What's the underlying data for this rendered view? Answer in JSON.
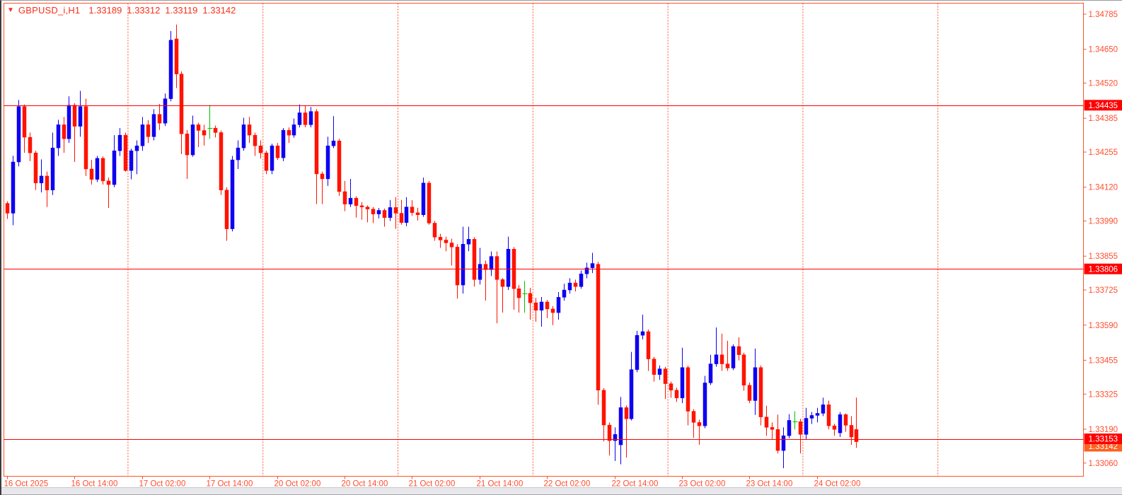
{
  "window": {
    "background": "#ffffff"
  },
  "title": {
    "indicator_arrow": "▼",
    "symbol_period": "GBPUSD_i,H1",
    "ohlc": [
      "1.33189",
      "1.33312",
      "1.33119",
      "1.33142"
    ]
  },
  "colors": {
    "axis_text": "#ff4d2e",
    "frame": "#ff5330",
    "separator": "#ff5330",
    "hline": "#ff0000",
    "hline_label_bg": "#ff0000",
    "hline_label_text": "#ffffff",
    "bid_label_bg": "#ff6020",
    "bid_label_text": "#ffffff",
    "bull": "#0e00f0",
    "bear": "#ff1300",
    "doji": "#00c400",
    "title_text": "#f5311d"
  },
  "price_axis": {
    "ticks": [
      "1.34785",
      "1.34650",
      "1.34520",
      "1.34385",
      "1.34255",
      "1.34120",
      "1.33990",
      "1.33855",
      "1.33725",
      "1.33590",
      "1.33455",
      "1.33325",
      "1.33190",
      "1.33060"
    ]
  },
  "time_axis": {
    "labels": [
      {
        "index": 0,
        "text": "16 Oct 2025"
      },
      {
        "index": 12,
        "text": "16 Oct 14:00"
      },
      {
        "index": 24,
        "text": "17 Oct 02:00"
      },
      {
        "index": 36,
        "text": "17 Oct 14:00"
      },
      {
        "index": 48,
        "text": "20 Oct 02:00"
      },
      {
        "index": 60,
        "text": "20 Oct 14:00"
      },
      {
        "index": 72,
        "text": "21 Oct 02:00"
      },
      {
        "index": 84,
        "text": "21 Oct 14:00"
      },
      {
        "index": 96,
        "text": "22 Oct 02:00"
      },
      {
        "index": 108,
        "text": "22 Oct 14:00"
      },
      {
        "index": 120,
        "text": "23 Oct 02:00"
      },
      {
        "index": 132,
        "text": "23 Oct 14:00"
      },
      {
        "index": 144,
        "text": "24 Oct 02:00"
      }
    ]
  },
  "hlines": [
    {
      "price": "1.34435"
    },
    {
      "price": "1.33806"
    },
    {
      "price": "1.33153"
    }
  ],
  "current_price": {
    "value": "1.33142"
  },
  "separators": {
    "indices": [
      21.5,
      45.5,
      69.5,
      93.5,
      117.5,
      141.5,
      165.5
    ]
  },
  "chart_data": {
    "type": "candlestick",
    "symbol": "GBPUSD_i",
    "timeframe": "H1",
    "title": "GBPUSD_i,H1",
    "start_time": "16 Oct 2025 02:00",
    "interval": "1 hour (weekend 18-19 Oct skipped)",
    "ylim": [
      1.3306,
      1.34785
    ],
    "grid": "off",
    "current_candle_ohlc": {
      "open": 1.33189,
      "high": 1.33312,
      "low": 1.33119,
      "close": 1.33142
    },
    "horizontal_levels": [
      1.34435,
      1.33806,
      1.33153
    ],
    "candles": [
      [
        1.34058,
        1.34066,
        1.33998,
        1.3402
      ],
      [
        1.3402,
        1.34241,
        1.33974,
        1.34217
      ],
      [
        1.34217,
        1.34455,
        1.342,
        1.3443
      ],
      [
        1.3443,
        1.34438,
        1.34252,
        1.34312
      ],
      [
        1.34312,
        1.3433,
        1.3422,
        1.34252
      ],
      [
        1.34252,
        1.3426,
        1.34109,
        1.34136
      ],
      [
        1.34136,
        1.34227,
        1.341,
        1.34163
      ],
      [
        1.34163,
        1.3418,
        1.34044,
        1.34109
      ],
      [
        1.34109,
        1.3433,
        1.3409,
        1.34271
      ],
      [
        1.34271,
        1.34379,
        1.3424,
        1.3436
      ],
      [
        1.3436,
        1.3439,
        1.34252,
        1.34306
      ],
      [
        1.34306,
        1.34469,
        1.3429,
        1.34435
      ],
      [
        1.34435,
        1.34443,
        1.34217,
        1.34354
      ],
      [
        1.34354,
        1.3449,
        1.34314,
        1.3443
      ],
      [
        1.3443,
        1.3446,
        1.34163,
        1.3419
      ],
      [
        1.3419,
        1.34225,
        1.3413,
        1.3415
      ],
      [
        1.3415,
        1.3424,
        1.3414,
        1.34231
      ],
      [
        1.34231,
        1.34238,
        1.3413,
        1.34144
      ],
      [
        1.34144,
        1.34157,
        1.3404,
        1.3413
      ],
      [
        1.3413,
        1.3432,
        1.3412,
        1.3426
      ],
      [
        1.3426,
        1.34347,
        1.3424,
        1.3432
      ],
      [
        1.3432,
        1.3433,
        1.3418,
        1.34184
      ],
      [
        1.34184,
        1.34268,
        1.3415,
        1.3426
      ],
      [
        1.3426,
        1.343,
        1.3417,
        1.34279
      ],
      [
        1.34279,
        1.3439,
        1.3426,
        1.3436
      ],
      [
        1.3436,
        1.34378,
        1.3429,
        1.34314
      ],
      [
        1.34314,
        1.3442,
        1.343,
        1.344
      ],
      [
        1.344,
        1.3444,
        1.3434,
        1.34366
      ],
      [
        1.34366,
        1.3448,
        1.34355,
        1.3446
      ],
      [
        1.3446,
        1.3472,
        1.3445,
        1.34685
      ],
      [
        1.3469,
        1.34745,
        1.34501,
        1.34555
      ],
      [
        1.34555,
        1.34565,
        1.34247,
        1.34325
      ],
      [
        1.34325,
        1.3434,
        1.34152,
        1.34244
      ],
      [
        1.34244,
        1.34395,
        1.34237,
        1.3436
      ],
      [
        1.3436,
        1.34368,
        1.34274,
        1.34338
      ],
      [
        1.34338,
        1.3436,
        1.3428,
        1.3432
      ],
      [
        1.34347,
        1.34436,
        1.34306,
        1.34347
      ],
      [
        1.34347,
        1.34357,
        1.34311,
        1.3433
      ],
      [
        1.3433,
        1.34338,
        1.3409,
        1.34109
      ],
      [
        1.34109,
        1.3412,
        1.33914,
        1.3396
      ],
      [
        1.3396,
        1.3424,
        1.3395,
        1.34225
      ],
      [
        1.34225,
        1.343,
        1.3419,
        1.34271
      ],
      [
        1.34271,
        1.34387,
        1.3426,
        1.3436
      ],
      [
        1.3436,
        1.3439,
        1.3429,
        1.3432
      ],
      [
        1.3432,
        1.3433,
        1.3424,
        1.34279
      ],
      [
        1.34279,
        1.343,
        1.3423,
        1.34252
      ],
      [
        1.34252,
        1.3426,
        1.3417,
        1.34184
      ],
      [
        1.34184,
        1.34287,
        1.3417,
        1.34279
      ],
      [
        1.34279,
        1.3429,
        1.34225,
        1.34233
      ],
      [
        1.34233,
        1.34347,
        1.3422,
        1.34339
      ],
      [
        1.34339,
        1.3435,
        1.3429,
        1.3432
      ],
      [
        1.3432,
        1.34384,
        1.3431,
        1.3436
      ],
      [
        1.3436,
        1.34438,
        1.3435,
        1.34406
      ],
      [
        1.34406,
        1.34435,
        1.3435,
        1.3436
      ],
      [
        1.3436,
        1.34428,
        1.3435,
        1.34411
      ],
      [
        1.34411,
        1.3442,
        1.34055,
        1.34171
      ],
      [
        1.34171,
        1.3418,
        1.34055,
        1.34152
      ],
      [
        1.34152,
        1.34314,
        1.34125,
        1.34279
      ],
      [
        1.34279,
        1.34393,
        1.3427,
        1.34298
      ],
      [
        1.34298,
        1.34306,
        1.34087,
        1.34103
      ],
      [
        1.34103,
        1.34144,
        1.34028,
        1.34055
      ],
      [
        1.34055,
        1.34152,
        1.34044,
        1.34078
      ],
      [
        1.34078,
        1.34085,
        1.34003,
        1.34049
      ],
      [
        1.34049,
        1.34063,
        1.33995,
        1.34044
      ],
      [
        1.34044,
        1.3405,
        1.33985,
        1.34036
      ],
      [
        1.34036,
        1.34044,
        1.33982,
        1.34017
      ],
      [
        1.34017,
        1.3404,
        1.34,
        1.34031
      ],
      [
        1.34031,
        1.34038,
        1.33968,
        1.34003
      ],
      [
        1.34003,
        1.34071,
        1.3399,
        1.34042
      ],
      [
        1.34042,
        1.34082,
        1.3396,
        1.3402
      ],
      [
        1.3402,
        1.34071,
        1.33976,
        1.33984
      ],
      [
        1.33984,
        1.34082,
        1.3397,
        1.34044
      ],
      [
        1.34044,
        1.3407,
        1.3401,
        1.34022
      ],
      [
        1.34022,
        1.34041,
        1.33992,
        1.34014
      ],
      [
        1.34014,
        1.34157,
        1.34006,
        1.34136
      ],
      [
        1.34136,
        1.34144,
        1.33976,
        1.33982
      ],
      [
        1.33982,
        1.3399,
        1.33914,
        1.33928
      ],
      [
        1.33928,
        1.33941,
        1.33887,
        1.33917
      ],
      [
        1.33917,
        1.3393,
        1.33874,
        1.33906
      ],
      [
        1.33906,
        1.33922,
        1.33819,
        1.3389
      ],
      [
        1.3389,
        1.33901,
        1.33692,
        1.33744
      ],
      [
        1.33744,
        1.33968,
        1.33711,
        1.33901
      ],
      [
        1.33901,
        1.33968,
        1.33874,
        1.3392
      ],
      [
        1.3392,
        1.33928,
        1.33738,
        1.33765
      ],
      [
        1.33765,
        1.33887,
        1.33746,
        1.33824
      ],
      [
        1.33824,
        1.33838,
        1.33684,
        1.33803
      ],
      [
        1.33803,
        1.33873,
        1.33779,
        1.33854
      ],
      [
        1.33854,
        1.33873,
        1.33597,
        1.33765
      ],
      [
        1.33765,
        1.33771,
        1.33638,
        1.33738
      ],
      [
        1.33738,
        1.3393,
        1.33725,
        1.33882
      ],
      [
        1.33882,
        1.3389,
        1.33649,
        1.3373
      ],
      [
        1.3373,
        1.33744,
        1.33638,
        1.33695
      ],
      [
        1.33712,
        1.3376,
        1.33638,
        1.33712
      ],
      [
        1.33712,
        1.33733,
        1.33611,
        1.33676
      ],
      [
        1.33676,
        1.33695,
        1.33603,
        1.33647
      ],
      [
        1.33647,
        1.33698,
        1.33584,
        1.33679
      ],
      [
        1.33679,
        1.33687,
        1.33617,
        1.33652
      ],
      [
        1.33652,
        1.33663,
        1.3359,
        1.33638
      ],
      [
        1.33638,
        1.33717,
        1.33611,
        1.33697
      ],
      [
        1.33697,
        1.33749,
        1.33684,
        1.33725
      ],
      [
        1.33725,
        1.3377,
        1.33711,
        1.33752
      ],
      [
        1.33752,
        1.33765,
        1.33719,
        1.33738
      ],
      [
        1.33738,
        1.338,
        1.3373,
        1.33787
      ],
      [
        1.33787,
        1.3383,
        1.3377,
        1.3381
      ],
      [
        1.3381,
        1.33868,
        1.3379,
        1.33827
      ],
      [
        1.33824,
        1.33833,
        1.33284,
        1.3334
      ],
      [
        1.3334,
        1.33348,
        1.33143,
        1.33206
      ],
      [
        1.33206,
        1.33216,
        1.33089,
        1.33146
      ],
      [
        1.33146,
        1.33197,
        1.33068,
        1.3317
      ],
      [
        1.3313,
        1.33314,
        1.33055,
        1.33273
      ],
      [
        1.33273,
        1.33281,
        1.33081,
        1.3323
      ],
      [
        1.3323,
        1.33487,
        1.33224,
        1.33419
      ],
      [
        1.33419,
        1.33568,
        1.33409,
        1.33551
      ],
      [
        1.33551,
        1.3363,
        1.33535,
        1.33565
      ],
      [
        1.33565,
        1.33573,
        1.33414,
        1.3346
      ],
      [
        1.3346,
        1.33468,
        1.33373,
        1.334
      ],
      [
        1.334,
        1.33435,
        1.3338,
        1.33422
      ],
      [
        1.33422,
        1.3343,
        1.33306,
        1.33365
      ],
      [
        1.33365,
        1.33373,
        1.33311,
        1.3334
      ],
      [
        1.3334,
        1.3335,
        1.33295,
        1.3331
      ],
      [
        1.3331,
        1.33503,
        1.3329,
        1.33427
      ],
      [
        1.33427,
        1.33435,
        1.33205,
        1.33259
      ],
      [
        1.33259,
        1.33267,
        1.33157,
        1.33216
      ],
      [
        1.33216,
        1.33227,
        1.3313,
        1.33203
      ],
      [
        1.33203,
        1.33395,
        1.33194,
        1.33368
      ],
      [
        1.33368,
        1.33476,
        1.3336,
        1.33441
      ],
      [
        1.33441,
        1.33581,
        1.3343,
        1.33476
      ],
      [
        1.33476,
        1.33557,
        1.33414,
        1.33441
      ],
      [
        1.33441,
        1.3353,
        1.33414,
        1.33425
      ],
      [
        1.33425,
        1.33516,
        1.33417,
        1.33508
      ],
      [
        1.33508,
        1.33543,
        1.33454,
        1.33476
      ],
      [
        1.33476,
        1.33484,
        1.33338,
        1.33359
      ],
      [
        1.33359,
        1.3337,
        1.3329,
        1.333
      ],
      [
        1.333,
        1.335,
        1.33245,
        1.33427
      ],
      [
        1.33427,
        1.33435,
        1.33205,
        1.33237
      ],
      [
        1.33237,
        1.3328,
        1.33165,
        1.33197
      ],
      [
        1.33197,
        1.33216,
        1.33151,
        1.33189
      ],
      [
        1.33189,
        1.33246,
        1.33097,
        1.33108
      ],
      [
        1.33108,
        1.33197,
        1.3304,
        1.33165
      ],
      [
        1.33165,
        1.33248,
        1.33155,
        1.33224
      ],
      [
        1.33219,
        1.33259,
        1.33189,
        1.33219
      ],
      [
        1.33219,
        1.3323,
        1.33097,
        1.3317
      ],
      [
        1.3317,
        1.33272,
        1.33151,
        1.33232
      ],
      [
        1.33232,
        1.33256,
        1.3321,
        1.33243
      ],
      [
        1.33243,
        1.33272,
        1.33216,
        1.33251
      ],
      [
        1.33251,
        1.33311,
        1.3324,
        1.33284
      ],
      [
        1.33284,
        1.333,
        1.33189,
        1.33203
      ],
      [
        1.33203,
        1.33211,
        1.33165,
        1.33189
      ],
      [
        1.33176,
        1.33256,
        1.3316,
        1.33246
      ],
      [
        1.33246,
        1.33251,
        1.3318,
        1.33205
      ],
      [
        1.33205,
        1.3324,
        1.3313,
        1.3316
      ],
      [
        1.33189,
        1.33312,
        1.33119,
        1.33142
      ]
    ]
  }
}
